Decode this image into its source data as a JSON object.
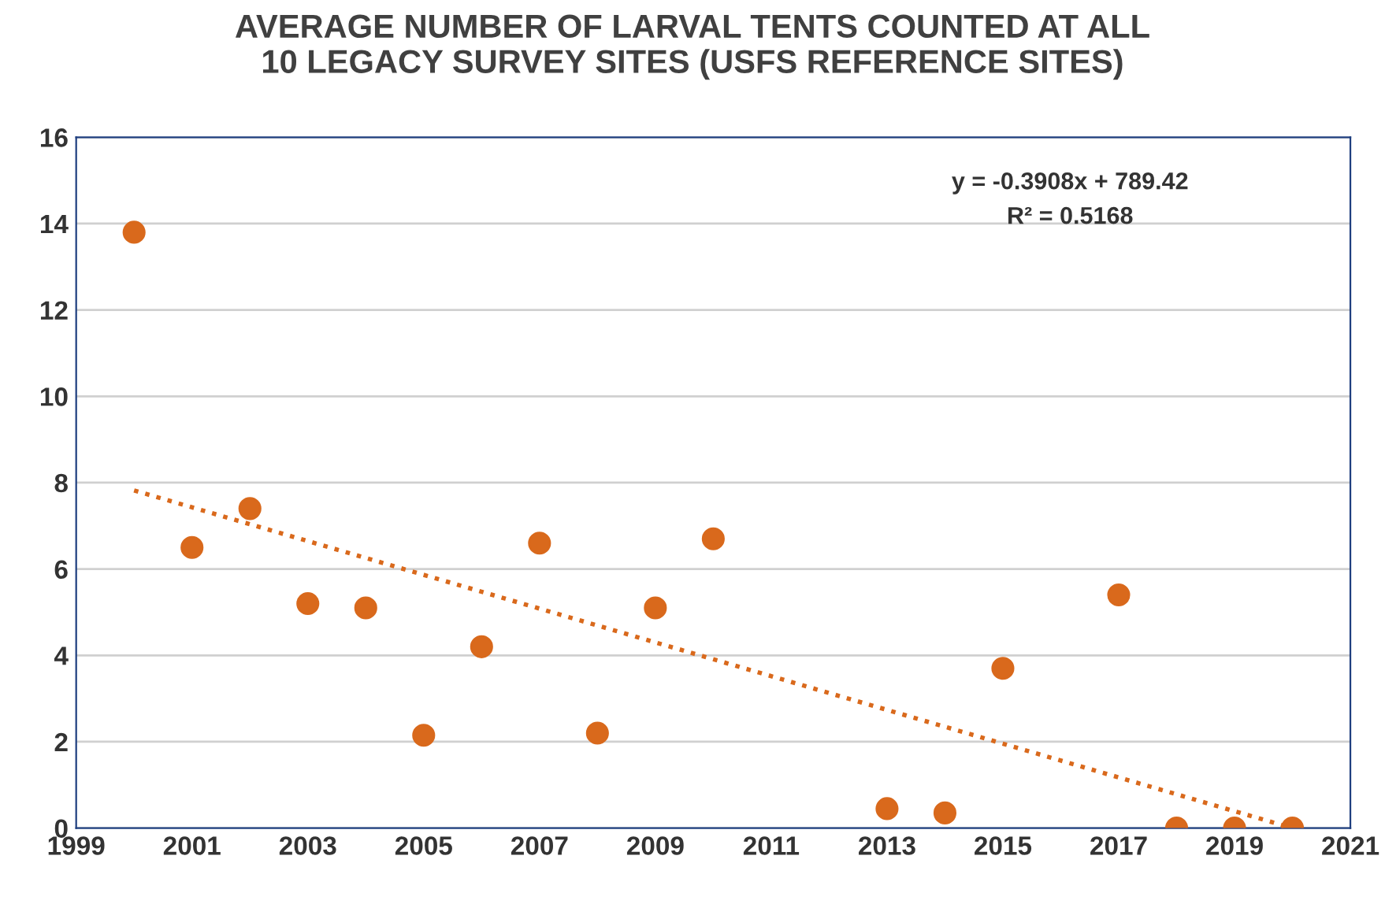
{
  "chart_data": {
    "type": "scatter",
    "title": "AVERAGE NUMBER OF LARVAL TENTS COUNTED AT ALL\n10 LEGACY SURVEY SITES (USFS REFERENCE SITES)",
    "x": [
      2000,
      2001,
      2002,
      2003,
      2004,
      2005,
      2006,
      2007,
      2008,
      2009,
      2010,
      2013,
      2014,
      2015,
      2017,
      2018,
      2019,
      2020
    ],
    "series": [
      {
        "color": "#d9691c",
        "marker": "circle",
        "values": [
          13.8,
          6.5,
          7.4,
          5.2,
          5.1,
          2.15,
          4.2,
          6.6,
          2.2,
          5.1,
          6.7,
          0.45,
          0.35,
          3.7,
          5.4,
          0,
          0,
          0
        ]
      },
      {
        "type": "line",
        "color": "#d9691c",
        "line_style": "dotted",
        "x": [
          2000,
          2020
        ],
        "values": [
          7.82,
          0.0
        ]
      }
    ],
    "annotations": [
      "y = -0.3908x + 789.42",
      "R² = 0.5168"
    ],
    "xlim": [
      1999,
      2021
    ],
    "xticks": [
      1999,
      2001,
      2003,
      2005,
      2007,
      2009,
      2011,
      2013,
      2015,
      2017,
      2019,
      2021
    ],
    "ylim": [
      0,
      16
    ],
    "yticks": [
      0,
      2,
      4,
      6,
      8,
      10,
      12,
      14,
      16
    ],
    "grid": "y",
    "legend": false
  }
}
